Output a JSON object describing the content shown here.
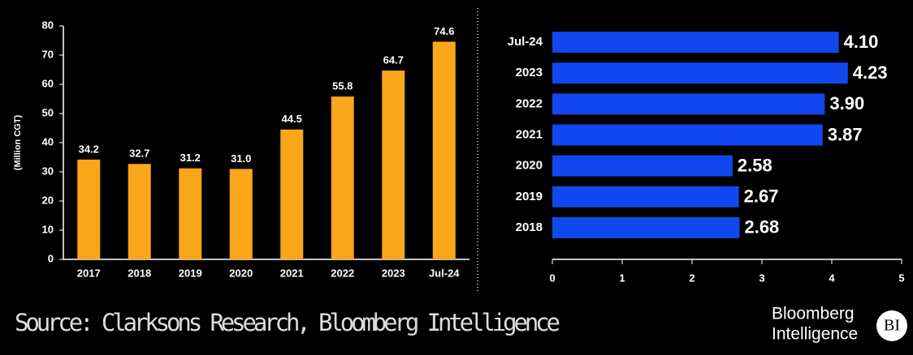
{
  "chart_data": [
    {
      "type": "bar",
      "orientation": "vertical",
      "y_label": "(Million CGT)",
      "categories": [
        "2017",
        "2018",
        "2019",
        "2020",
        "2021",
        "2022",
        "2023",
        "Jul-24"
      ],
      "values": [
        34.2,
        32.7,
        31.2,
        31.0,
        44.5,
        55.8,
        64.7,
        74.6
      ],
      "value_labels": [
        "34.2",
        "32.7",
        "31.2",
        "31.0",
        "44.5",
        "55.8",
        "64.7",
        "74.6"
      ],
      "color": "#f9a61a",
      "ylim": [
        0,
        80
      ],
      "yticks": [
        0,
        10,
        20,
        30,
        40,
        50,
        60,
        70,
        80
      ]
    },
    {
      "type": "bar",
      "orientation": "horizontal",
      "categories": [
        "Jul-24",
        "2023",
        "2022",
        "2021",
        "2020",
        "2019",
        "2018"
      ],
      "values": [
        4.1,
        4.23,
        3.9,
        3.87,
        2.58,
        2.67,
        2.68
      ],
      "value_labels": [
        "4.10",
        "4.23",
        "3.90",
        "3.87",
        "2.58",
        "2.67",
        "2.68"
      ],
      "color": "#1048f0",
      "xlim": [
        0,
        5
      ],
      "xticks": [
        0,
        1,
        2,
        3,
        4,
        5
      ]
    }
  ],
  "footer": {
    "source": "Source: Clarksons Research, Bloomberg Intelligence",
    "logo_line1": "Bloomberg",
    "logo_line2": "Intelligence",
    "badge": "BI"
  }
}
